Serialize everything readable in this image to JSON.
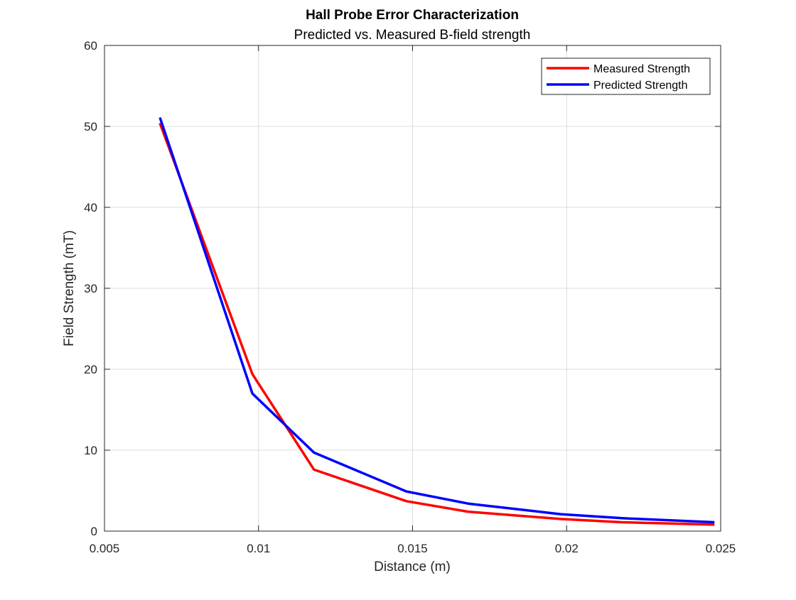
{
  "chart_data": {
    "type": "line",
    "title": "Hall Probe Error Characterization",
    "subtitle": "Predicted vs. Measured B-field strength",
    "xlabel": "Distance (m)",
    "ylabel": "Field Strength (mT)",
    "xlim": [
      0.005,
      0.025
    ],
    "ylim": [
      0,
      60
    ],
    "xticks": [
      0.005,
      0.01,
      0.015,
      0.02,
      0.025
    ],
    "xtick_labels": [
      "0.005",
      "0.01",
      "0.015",
      "0.02",
      "0.025"
    ],
    "yticks": [
      0,
      10,
      20,
      30,
      40,
      50,
      60
    ],
    "ytick_labels": [
      "0",
      "10",
      "20",
      "30",
      "40",
      "50",
      "60"
    ],
    "grid": true,
    "legend_position": "top-right",
    "series": [
      {
        "name": "Measured Strength",
        "color": "#ff0000",
        "x": [
          0.0068,
          0.0098,
          0.0118,
          0.0148,
          0.0168,
          0.0198,
          0.0218,
          0.0248
        ],
        "y": [
          50.4,
          19.4,
          7.6,
          3.7,
          2.4,
          1.5,
          1.1,
          0.8
        ]
      },
      {
        "name": "Predicted Strength",
        "color": "#0000ff",
        "x": [
          0.0068,
          0.0098,
          0.0118,
          0.0148,
          0.0168,
          0.0198,
          0.0218,
          0.0248
        ],
        "y": [
          51.1,
          17.0,
          9.7,
          4.9,
          3.4,
          2.1,
          1.6,
          1.1
        ]
      }
    ]
  }
}
